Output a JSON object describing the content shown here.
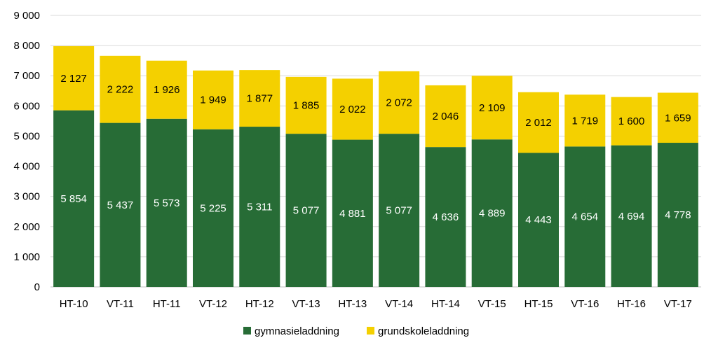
{
  "chart_data": {
    "type": "bar",
    "stacked": true,
    "categories": [
      "HT-10",
      "VT-11",
      "HT-11",
      "VT-12",
      "HT-12",
      "VT-13",
      "HT-13",
      "VT-14",
      "HT-14",
      "VT-15",
      "HT-15",
      "VT-16",
      "HT-16",
      "VT-17"
    ],
    "series": [
      {
        "name": "gymnasieladdning",
        "color": "#276c36",
        "values": [
          5854,
          5437,
          5573,
          5225,
          5311,
          5077,
          4881,
          5077,
          4636,
          4889,
          4443,
          4654,
          4694,
          4778
        ],
        "labels": [
          "5 854",
          "5 437",
          "5 573",
          "5 225",
          "5 311",
          "5 077",
          "4 881",
          "5 077",
          "4 636",
          "4 889",
          "4 443",
          "4 654",
          "4 694",
          "4 778"
        ]
      },
      {
        "name": "grundskoleladdning",
        "color": "#f4d000",
        "values": [
          2127,
          2222,
          1926,
          1949,
          1877,
          1885,
          2022,
          2072,
          2046,
          2109,
          2012,
          1719,
          1600,
          1659
        ],
        "labels": [
          "2 127",
          "2 222",
          "1 926",
          "1 949",
          "1 877",
          "1 885",
          "2 022",
          "2 072",
          "2 046",
          "2 109",
          "2 012",
          "1 719",
          "1 600",
          "1 659"
        ]
      }
    ],
    "title": "",
    "xlabel": "",
    "ylabel": "",
    "ylim": [
      0,
      9000
    ],
    "yticks": [
      0,
      1000,
      2000,
      3000,
      4000,
      5000,
      6000,
      7000,
      8000,
      9000
    ],
    "ytick_labels": [
      "0",
      "1 000",
      "2 000",
      "3 000",
      "4 000",
      "5 000",
      "6 000",
      "7 000",
      "8 000",
      "9 000"
    ],
    "grid": true,
    "legend_position": "bottom",
    "colors": {
      "grid": "#d9d9d9",
      "axis": "#bfbfbf",
      "text": "#000000",
      "label_on_dark": "#ffffff",
      "label_on_light": "#000000"
    }
  }
}
